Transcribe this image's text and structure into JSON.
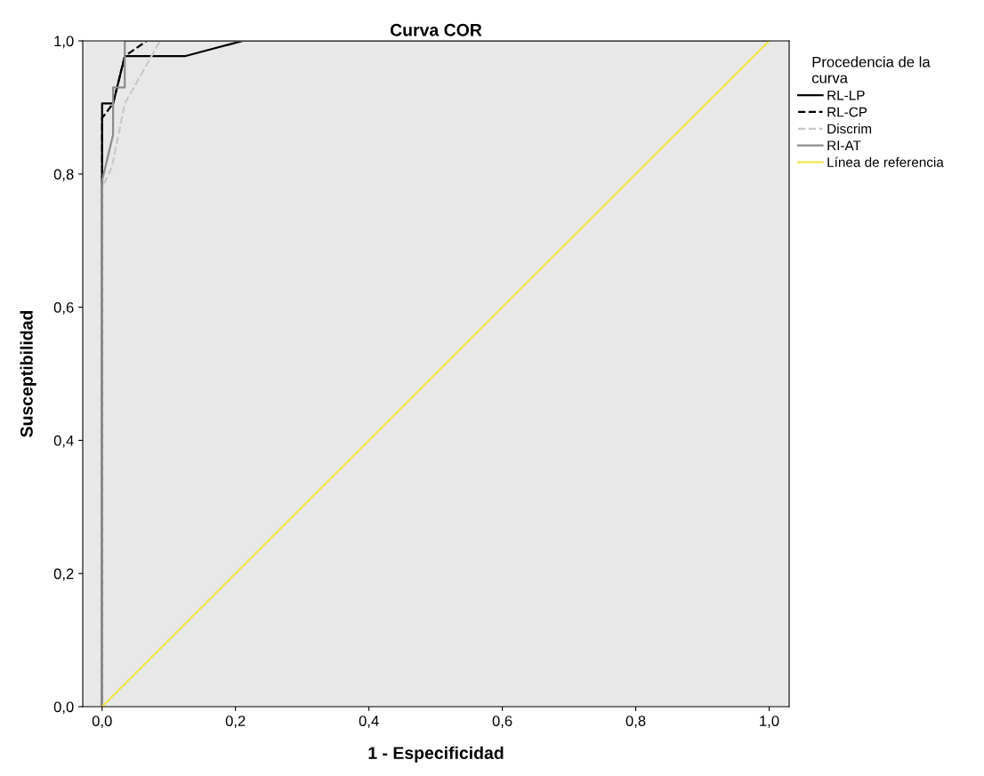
{
  "chart_data": {
    "type": "line",
    "title": "Curva COR",
    "xlabel": "1 - Especificidad",
    "ylabel": "Susceptibilidad",
    "legend_title": "Procedencia de la\ncurva",
    "xlim": [
      -0.029,
      1.03
    ],
    "ylim": [
      0,
      1
    ],
    "xticks": [
      {
        "value": 0,
        "label": "0,0"
      },
      {
        "value": 0.2,
        "label": "0,2"
      },
      {
        "value": 0.4,
        "label": "0,4"
      },
      {
        "value": 0.6,
        "label": "0,6"
      },
      {
        "value": 0.8,
        "label": "0,8"
      },
      {
        "value": 1,
        "label": "1,0"
      }
    ],
    "yticks": [
      {
        "value": 0,
        "label": "0,0"
      },
      {
        "value": 0.2,
        "label": "0,2"
      },
      {
        "value": 0.4,
        "label": "0,4"
      },
      {
        "value": 0.6,
        "label": "0,6"
      },
      {
        "value": 0.8,
        "label": "0,8"
      },
      {
        "value": 1,
        "label": "1,0"
      }
    ],
    "grid": false,
    "legend": "right",
    "marker": "none",
    "series": [
      {
        "name": "RL-LP",
        "color": "#000000",
        "line_style": "solid",
        "x": [
          0,
          0,
          0.0165,
          0.0165,
          0.034,
          0.124,
          0.211,
          1
        ],
        "values": [
          0,
          0.906,
          0.906,
          0.906,
          0.977,
          0.977,
          1,
          1
        ]
      },
      {
        "name": "RL-CP",
        "color": "#000000",
        "line_style": "dashed",
        "x": [
          0,
          0,
          0.0165,
          0.034,
          0.067,
          1
        ],
        "values": [
          0,
          0.884,
          0.906,
          0.977,
          1,
          1
        ]
      },
      {
        "name": "Discrim",
        "color": "#c8c8c8",
        "line_style": "dashed",
        "x": [
          0,
          0,
          0.0147,
          0.034,
          0.087,
          1
        ],
        "values": [
          0,
          0.78,
          0.81,
          0.906,
          1,
          1
        ]
      },
      {
        "name": "RI-AT",
        "color": "#8c8c8c",
        "line_style": "solid",
        "x": [
          0,
          0,
          0.0165,
          0.0165,
          0.034,
          0.034,
          1
        ],
        "values": [
          0,
          0.79,
          0.859,
          0.93,
          0.93,
          1,
          1
        ]
      },
      {
        "name": "Línea de referencia",
        "color": "#f0e64a",
        "line_style": "solid",
        "x": [
          0,
          1
        ],
        "values": [
          0,
          1
        ]
      }
    ]
  }
}
